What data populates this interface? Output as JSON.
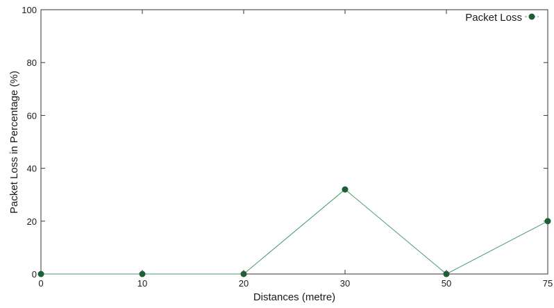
{
  "chart_data": {
    "type": "line",
    "title": "",
    "xlabel": "Distances (metre)",
    "ylabel": "Packet Loss in Percentage (%)",
    "categories": [
      "0",
      "10",
      "20",
      "30",
      "50",
      "75"
    ],
    "series": [
      {
        "name": "Packet Loss",
        "values": [
          0,
          0,
          0,
          32,
          0,
          20
        ],
        "line_color": "#4a9a6f",
        "marker_color": "#1e5e36"
      }
    ],
    "ylim": [
      0,
      100
    ],
    "yticks": [
      "0",
      "20",
      "40",
      "60",
      "80",
      "100"
    ],
    "grid": false,
    "legend_position": "top-right"
  }
}
